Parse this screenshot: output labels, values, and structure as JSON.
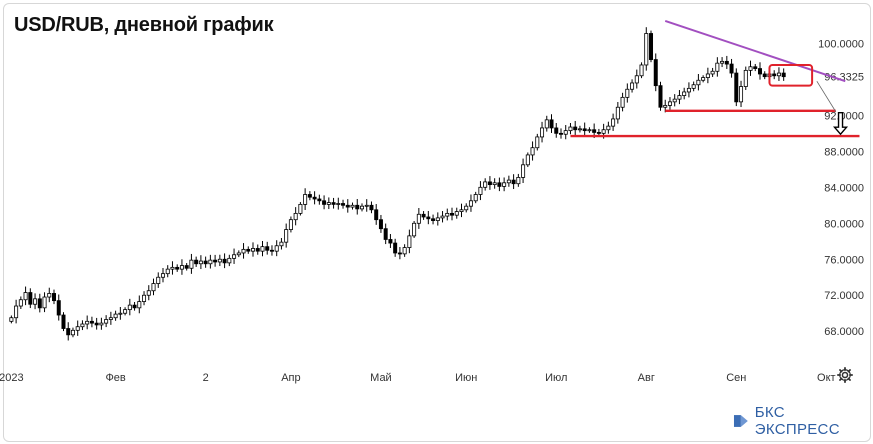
{
  "title": "USD/RUB, дневной график",
  "brand": {
    "name": "БКС ЭКСПРЕСС",
    "icon": "bcs-logo-icon",
    "color": "#2f5fa3"
  },
  "settings_icon": "gear-icon",
  "chart_data": {
    "type": "candlestick",
    "instrument": "USD/RUB",
    "timeframe": "дневной",
    "ylim": [
      64.8,
      102.6
    ],
    "y_ticks": [
      {
        "value": 100,
        "label": "100.0000"
      },
      {
        "value": 96.3325,
        "label": "96.3325"
      },
      {
        "value": 92,
        "label": "92.0000"
      },
      {
        "value": 88,
        "label": "88.0000"
      },
      {
        "value": 84,
        "label": "84.0000"
      },
      {
        "value": 80,
        "label": "80.0000"
      },
      {
        "value": 76,
        "label": "76.0000"
      },
      {
        "value": 72,
        "label": "72.0000"
      },
      {
        "value": 68,
        "label": "68.0000"
      }
    ],
    "x_ticks": [
      {
        "index": 0,
        "label": "2023"
      },
      {
        "index": 22,
        "label": "Фев"
      },
      {
        "index": 41,
        "label": "2"
      },
      {
        "index": 59,
        "label": "Апр"
      },
      {
        "index": 78,
        "label": "Май"
      },
      {
        "index": 96,
        "label": "Июн"
      },
      {
        "index": 115,
        "label": "Июл"
      },
      {
        "index": 134,
        "label": "Авг"
      },
      {
        "index": 153,
        "label": "Сен"
      },
      {
        "index": 172,
        "label": "Окт"
      }
    ],
    "close": [
      69.5,
      70.8,
      71.5,
      72.3,
      71.0,
      71.6,
      70.6,
      71.8,
      72.2,
      71.4,
      69.8,
      68.3,
      67.6,
      68.1,
      68.5,
      68.8,
      69.1,
      68.9,
      68.7,
      68.9,
      69.3,
      69.5,
      69.9,
      70.0,
      70.4,
      70.9,
      70.6,
      71.3,
      72.0,
      72.5,
      73.3,
      74.0,
      74.4,
      74.9,
      75.1,
      74.9,
      75.3,
      75.0,
      75.9,
      75.5,
      75.8,
      75.5,
      75.9,
      75.7,
      76.0,
      75.6,
      76.1,
      76.5,
      76.7,
      77.1,
      76.9,
      77.2,
      76.9,
      77.4,
      77.0,
      76.9,
      77.5,
      77.9,
      79.3,
      80.4,
      81.1,
      82.1,
      83.2,
      82.9,
      82.7,
      82.5,
      82.1,
      82.3,
      82.1,
      82.2,
      82.0,
      81.8,
      82.0,
      81.6,
      81.9,
      82.0,
      81.5,
      80.4,
      79.4,
      78.2,
      77.8,
      76.7,
      76.6,
      77.3,
      78.6,
      80.0,
      81.0,
      80.7,
      80.5,
      80.3,
      80.6,
      80.8,
      81.1,
      80.9,
      81.3,
      81.5,
      81.9,
      82.5,
      83.2,
      84.0,
      84.6,
      84.3,
      84.5,
      84.1,
      84.5,
      84.8,
      84.4,
      85.1,
      86.5,
      87.6,
      88.4,
      89.6,
      90.6,
      91.5,
      90.6,
      90.0,
      89.9,
      90.3,
      90.7,
      90.4,
      90.5,
      90.3,
      90.4,
      90.1,
      90.0,
      90.4,
      90.8,
      91.6,
      92.9,
      94.0,
      94.9,
      95.6,
      96.4,
      97.6,
      101.1,
      98.2,
      95.3,
      92.9,
      93.1,
      93.5,
      93.8,
      94.2,
      94.6,
      95.0,
      95.4,
      95.9,
      96.2,
      96.6,
      96.9,
      97.8,
      98.0,
      97.7,
      96.7,
      93.5,
      95.2,
      97.0,
      97.4,
      97.2,
      96.6,
      96.3,
      96.6,
      96.4,
      96.7,
      96.3
    ]
  },
  "annotations": {
    "resistance_line": {
      "start_index": 138,
      "start_value": 102.5,
      "end_index": 176,
      "end_value": 95.8,
      "color": "#a24fc0"
    },
    "support_lines": [
      {
        "start_index": 138,
        "end_index": 174,
        "value": 92.5,
        "color": "#e0222b"
      },
      {
        "start_index": 118,
        "end_index": 179,
        "value": 89.7,
        "color": "#e0222b"
      }
    ],
    "consolidation_box": {
      "start_index": 160,
      "end_index": 169,
      "low": 95.3,
      "high": 97.6,
      "color": "#e0222b"
    },
    "projection_line": {
      "start_index": 170,
      "start_value": 95.8,
      "end_index": 174,
      "end_value": 92.4,
      "color": "#666666"
    },
    "down_arrow": {
      "index": 175,
      "from_value": 92.3,
      "to_value": 89.9,
      "color": "#000000"
    }
  }
}
